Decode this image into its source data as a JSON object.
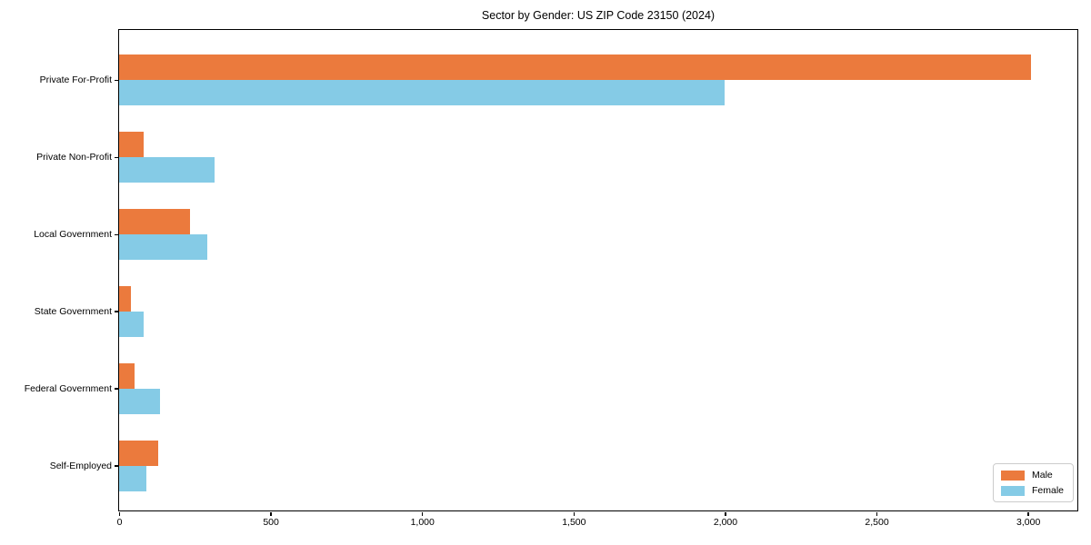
{
  "chart_data": {
    "type": "bar",
    "orientation": "horizontal",
    "title": "Sector by Gender: US ZIP Code 23150 (2024)",
    "categories": [
      "Private For-Profit",
      "Private Non-Profit",
      "Local Government",
      "State Government",
      "Federal Government",
      "Self-Employed"
    ],
    "series": [
      {
        "name": "Male",
        "color": "#eb7a3d",
        "values": [
          3010,
          80,
          235,
          40,
          50,
          130
        ]
      },
      {
        "name": "Female",
        "color": "#85cbe6",
        "values": [
          2000,
          315,
          290,
          80,
          135,
          90
        ]
      }
    ],
    "xlim": [
      0,
      3160
    ],
    "xticks": [
      0,
      500,
      1000,
      1500,
      2000,
      2500,
      3000
    ],
    "xtick_labels": [
      "0",
      "500",
      "1,000",
      "1,500",
      "2,000",
      "2,500",
      "3,000"
    ],
    "xlabel": "",
    "ylabel": "",
    "grid": false,
    "legend_position": "lower right",
    "plot_border_color": "#000000",
    "background_color": "#ffffff"
  }
}
